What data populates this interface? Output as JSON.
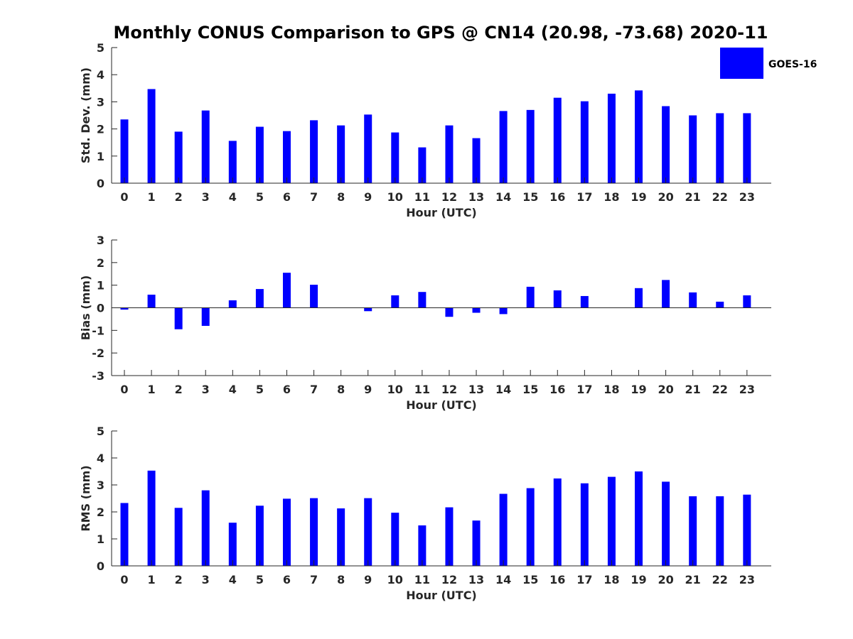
{
  "figure": {
    "title": "Monthly CONUS Comparison to GPS @ CN14 (20.98, -73.68) 2020-11",
    "legend": {
      "label": "GOES-16",
      "color": "#0000ff",
      "placement": "top-right"
    },
    "bar_color": "#0000ff",
    "axis_color": "#262626"
  },
  "chart_data": [
    {
      "type": "bar",
      "xlabel": "Hour (UTC)",
      "ylabel": "Std. Dev. (mm)",
      "ylim": [
        0,
        5
      ],
      "yticks": [
        0,
        1,
        2,
        3,
        4,
        5
      ],
      "grid": false,
      "categories": [
        "0",
        "1",
        "2",
        "3",
        "4",
        "5",
        "6",
        "7",
        "8",
        "9",
        "10",
        "11",
        "12",
        "13",
        "14",
        "15",
        "16",
        "17",
        "18",
        "19",
        "20",
        "21",
        "22",
        "23"
      ],
      "series": [
        {
          "name": "GOES-16",
          "values": [
            2.35,
            3.47,
            1.9,
            2.68,
            1.56,
            2.08,
            1.92,
            2.32,
            2.13,
            2.53,
            1.87,
            1.32,
            2.13,
            1.66,
            2.66,
            2.7,
            3.15,
            3.02,
            3.3,
            3.42,
            2.84,
            2.5,
            2.58,
            2.58
          ]
        }
      ]
    },
    {
      "type": "bar",
      "xlabel": "Hour (UTC)",
      "ylabel": "Bias (mm)",
      "ylim": [
        -3,
        3
      ],
      "yticks": [
        -3,
        -2,
        -1,
        0,
        1,
        2,
        3
      ],
      "grid": false,
      "baseline": 0,
      "categories": [
        "0",
        "1",
        "2",
        "3",
        "4",
        "5",
        "6",
        "7",
        "8",
        "9",
        "10",
        "11",
        "12",
        "13",
        "14",
        "15",
        "16",
        "17",
        "18",
        "19",
        "20",
        "21",
        "22",
        "23"
      ],
      "series": [
        {
          "name": "GOES-16",
          "values": [
            -0.08,
            0.58,
            -0.95,
            -0.8,
            0.33,
            0.83,
            1.55,
            1.02,
            0.0,
            -0.15,
            0.55,
            0.7,
            -0.4,
            -0.22,
            -0.28,
            0.93,
            0.77,
            0.52,
            0.0,
            0.87,
            1.23,
            0.68,
            0.27,
            0.55
          ]
        }
      ]
    },
    {
      "type": "bar",
      "xlabel": "Hour (UTC)",
      "ylabel": "RMS (mm)",
      "ylim": [
        0,
        5
      ],
      "yticks": [
        0,
        1,
        2,
        3,
        4,
        5
      ],
      "grid": false,
      "categories": [
        "0",
        "1",
        "2",
        "3",
        "4",
        "5",
        "6",
        "7",
        "8",
        "9",
        "10",
        "11",
        "12",
        "13",
        "14",
        "15",
        "16",
        "17",
        "18",
        "19",
        "20",
        "21",
        "22",
        "23"
      ],
      "series": [
        {
          "name": "GOES-16",
          "values": [
            2.33,
            3.53,
            2.15,
            2.8,
            1.6,
            2.23,
            2.49,
            2.51,
            2.13,
            2.51,
            1.97,
            1.5,
            2.17,
            1.68,
            2.67,
            2.88,
            3.24,
            3.06,
            3.3,
            3.5,
            3.12,
            2.58,
            2.58,
            2.64
          ]
        }
      ]
    }
  ]
}
